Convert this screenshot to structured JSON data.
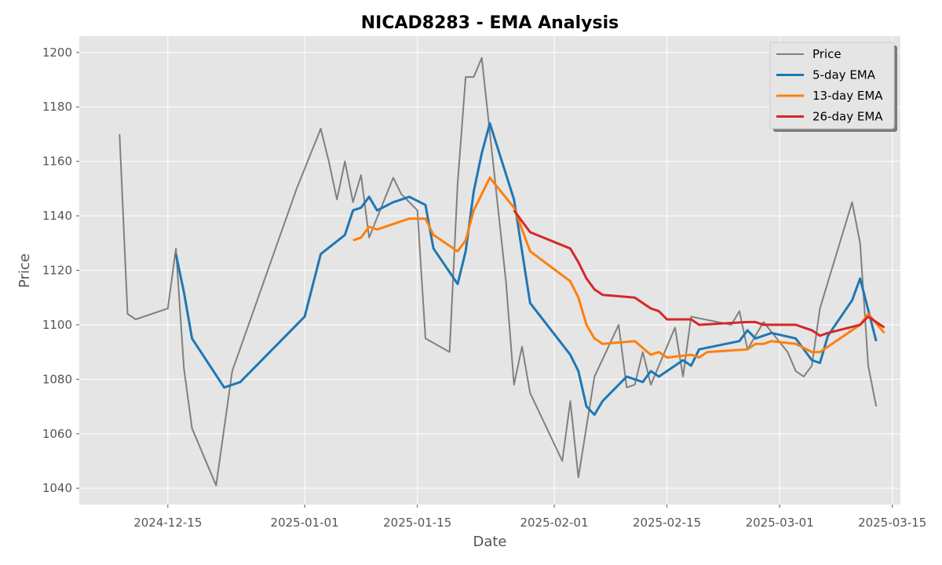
{
  "chart_data": {
    "type": "line",
    "title": "NICAD8283 - EMA Analysis",
    "xlabel": "Date",
    "ylabel": "Price",
    "xlim": [
      "2024-12-04",
      "2025-03-16"
    ],
    "ylim": [
      1034,
      1206
    ],
    "x_ticks": [
      "2024-12-15",
      "2025-01-01",
      "2025-01-15",
      "2025-02-01",
      "2025-02-15",
      "2025-03-01",
      "2025-03-15"
    ],
    "y_ticks": [
      1040,
      1060,
      1080,
      1100,
      1120,
      1140,
      1160,
      1180,
      1200
    ],
    "grid": true,
    "legend_position": "top-right",
    "series": [
      {
        "name": "Price",
        "color": "#808080",
        "points": [
          [
            "2024-12-09",
            1170
          ],
          [
            "2024-12-10",
            1104
          ],
          [
            "2024-12-11",
            1102
          ],
          [
            "2024-12-15",
            1106
          ],
          [
            "2024-12-16",
            1128
          ],
          [
            "2024-12-17",
            1084
          ],
          [
            "2024-12-18",
            1062
          ],
          [
            "2024-12-21",
            1041
          ],
          [
            "2024-12-23",
            1083
          ],
          [
            "2024-12-31",
            1150
          ],
          [
            "2025-01-03",
            1172
          ],
          [
            "2025-01-04",
            1160
          ],
          [
            "2025-01-05",
            1146
          ],
          [
            "2025-01-06",
            1160
          ],
          [
            "2025-01-07",
            1145
          ],
          [
            "2025-01-08",
            1155
          ],
          [
            "2025-01-09",
            1132
          ],
          [
            "2025-01-12",
            1154
          ],
          [
            "2025-01-13",
            1148
          ],
          [
            "2025-01-15",
            1142
          ],
          [
            "2025-01-16",
            1095
          ],
          [
            "2025-01-19",
            1090
          ],
          [
            "2025-01-20",
            1152
          ],
          [
            "2025-01-21",
            1191
          ],
          [
            "2025-01-22",
            1191
          ],
          [
            "2025-01-23",
            1198
          ],
          [
            "2025-01-26",
            1116
          ],
          [
            "2025-01-27",
            1078
          ],
          [
            "2025-01-28",
            1092
          ],
          [
            "2025-01-29",
            1075
          ],
          [
            "2025-02-02",
            1050
          ],
          [
            "2025-02-03",
            1072
          ],
          [
            "2025-02-04",
            1044
          ],
          [
            "2025-02-06",
            1081
          ],
          [
            "2025-02-09",
            1100
          ],
          [
            "2025-02-10",
            1077
          ],
          [
            "2025-02-11",
            1078
          ],
          [
            "2025-02-12",
            1090
          ],
          [
            "2025-02-13",
            1078
          ],
          [
            "2025-02-16",
            1099
          ],
          [
            "2025-02-17",
            1081
          ],
          [
            "2025-02-18",
            1103
          ],
          [
            "2025-02-23",
            1100
          ],
          [
            "2025-02-24",
            1105
          ],
          [
            "2025-02-25",
            1091
          ],
          [
            "2025-02-27",
            1101
          ],
          [
            "2025-03-02",
            1090
          ],
          [
            "2025-03-03",
            1083
          ],
          [
            "2025-03-04",
            1081
          ],
          [
            "2025-03-05",
            1085
          ],
          [
            "2025-03-06",
            1106
          ],
          [
            "2025-03-10",
            1145
          ],
          [
            "2025-03-11",
            1130
          ],
          [
            "2025-03-12",
            1085
          ],
          [
            "2025-03-13",
            1070
          ]
        ]
      },
      {
        "name": "5-day EMA",
        "color": "#1f77b4",
        "points": [
          [
            "2024-12-16",
            1126
          ],
          [
            "2024-12-17",
            1112
          ],
          [
            "2024-12-18",
            1095
          ],
          [
            "2024-12-22",
            1077
          ],
          [
            "2024-12-24",
            1079
          ],
          [
            "2025-01-01",
            1103
          ],
          [
            "2025-01-03",
            1126
          ],
          [
            "2025-01-06",
            1133
          ],
          [
            "2025-01-07",
            1142
          ],
          [
            "2025-01-08",
            1143
          ],
          [
            "2025-01-09",
            1147
          ],
          [
            "2025-01-10",
            1142
          ],
          [
            "2025-01-12",
            1145
          ],
          [
            "2025-01-13",
            1146
          ],
          [
            "2025-01-14",
            1147
          ],
          [
            "2025-01-16",
            1144
          ],
          [
            "2025-01-17",
            1128
          ],
          [
            "2025-01-20",
            1115
          ],
          [
            "2025-01-21",
            1127
          ],
          [
            "2025-01-22",
            1149
          ],
          [
            "2025-01-23",
            1163
          ],
          [
            "2025-01-24",
            1174
          ],
          [
            "2025-01-27",
            1146
          ],
          [
            "2025-01-29",
            1108
          ],
          [
            "2025-02-03",
            1089
          ],
          [
            "2025-02-04",
            1083
          ],
          [
            "2025-02-05",
            1070
          ],
          [
            "2025-02-06",
            1067
          ],
          [
            "2025-02-07",
            1072
          ],
          [
            "2025-02-10",
            1081
          ],
          [
            "2025-02-12",
            1079
          ],
          [
            "2025-02-13",
            1083
          ],
          [
            "2025-02-14",
            1081
          ],
          [
            "2025-02-17",
            1087
          ],
          [
            "2025-02-18",
            1085
          ],
          [
            "2025-02-19",
            1091
          ],
          [
            "2025-02-24",
            1094
          ],
          [
            "2025-02-25",
            1098
          ],
          [
            "2025-02-26",
            1095
          ],
          [
            "2025-02-28",
            1097
          ],
          [
            "2025-03-03",
            1095
          ],
          [
            "2025-03-05",
            1087
          ],
          [
            "2025-03-06",
            1086
          ],
          [
            "2025-03-07",
            1096
          ],
          [
            "2025-03-10",
            1109
          ],
          [
            "2025-03-11",
            1117
          ],
          [
            "2025-03-13",
            1094
          ]
        ]
      },
      {
        "name": "13-day EMA",
        "color": "#ff7f0e",
        "points": [
          [
            "2025-01-07",
            1131
          ],
          [
            "2025-01-08",
            1132
          ],
          [
            "2025-01-09",
            1136
          ],
          [
            "2025-01-10",
            1135
          ],
          [
            "2025-01-13",
            1138
          ],
          [
            "2025-01-14",
            1139
          ],
          [
            "2025-01-16",
            1139
          ],
          [
            "2025-01-17",
            1133
          ],
          [
            "2025-01-20",
            1127
          ],
          [
            "2025-01-21",
            1131
          ],
          [
            "2025-01-22",
            1142
          ],
          [
            "2025-01-24",
            1154
          ],
          [
            "2025-01-27",
            1143
          ],
          [
            "2025-01-29",
            1127
          ],
          [
            "2025-02-03",
            1116
          ],
          [
            "2025-02-04",
            1110
          ],
          [
            "2025-02-05",
            1100
          ],
          [
            "2025-02-06",
            1095
          ],
          [
            "2025-02-07",
            1093
          ],
          [
            "2025-02-11",
            1094
          ],
          [
            "2025-02-13",
            1089
          ],
          [
            "2025-02-14",
            1090
          ],
          [
            "2025-02-15",
            1088
          ],
          [
            "2025-02-18",
            1089
          ],
          [
            "2025-02-19",
            1088
          ],
          [
            "2025-02-20",
            1090
          ],
          [
            "2025-02-25",
            1091
          ],
          [
            "2025-02-26",
            1093
          ],
          [
            "2025-02-27",
            1093
          ],
          [
            "2025-02-28",
            1094
          ],
          [
            "2025-03-03",
            1093
          ],
          [
            "2025-03-05",
            1090
          ],
          [
            "2025-03-06",
            1090
          ],
          [
            "2025-03-07",
            1092
          ],
          [
            "2025-03-11",
            1100
          ],
          [
            "2025-03-12",
            1104
          ],
          [
            "2025-03-14",
            1097
          ]
        ]
      },
      {
        "name": "26-day EMA",
        "color": "#d62728",
        "points": [
          [
            "2025-01-27",
            1142
          ],
          [
            "2025-01-28",
            1138
          ],
          [
            "2025-01-29",
            1134
          ],
          [
            "2025-02-03",
            1128
          ],
          [
            "2025-02-04",
            1123
          ],
          [
            "2025-02-05",
            1117
          ],
          [
            "2025-02-06",
            1113
          ],
          [
            "2025-02-07",
            1111
          ],
          [
            "2025-02-11",
            1110
          ],
          [
            "2025-02-13",
            1106
          ],
          [
            "2025-02-14",
            1105
          ],
          [
            "2025-02-15",
            1102
          ],
          [
            "2025-02-18",
            1102
          ],
          [
            "2025-02-19",
            1100
          ],
          [
            "2025-02-25",
            1101
          ],
          [
            "2025-02-26",
            1101
          ],
          [
            "2025-02-27",
            1100
          ],
          [
            "2025-02-28",
            1100
          ],
          [
            "2025-03-03",
            1100
          ],
          [
            "2025-03-04",
            1099
          ],
          [
            "2025-03-05",
            1098
          ],
          [
            "2025-03-06",
            1096
          ],
          [
            "2025-03-07",
            1097
          ],
          [
            "2025-03-11",
            1100
          ],
          [
            "2025-03-12",
            1103
          ],
          [
            "2025-03-14",
            1099
          ]
        ]
      }
    ]
  }
}
